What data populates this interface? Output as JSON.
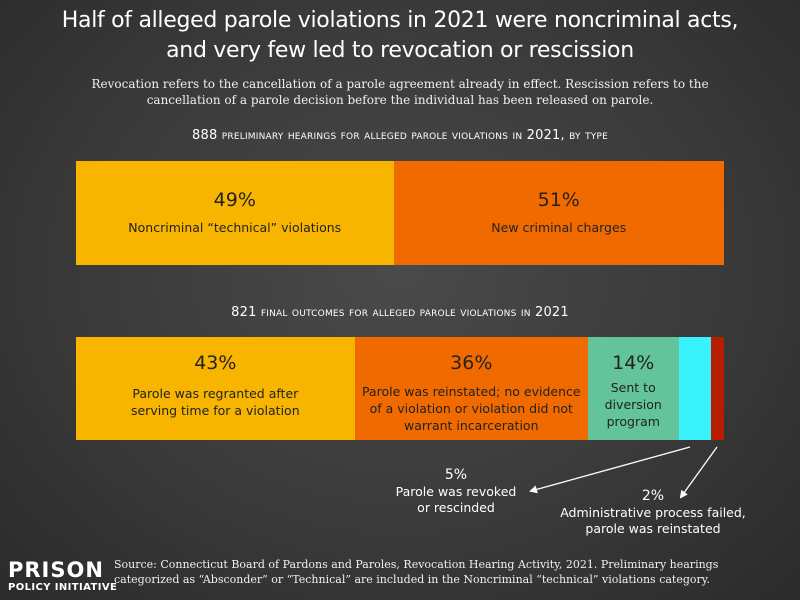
{
  "header": {
    "title_line1": "Half of alleged parole violations in 2021 were noncriminal acts,",
    "title_line2": "and very few led to revocation or rescission",
    "subtitle_line1": "Revocation refers to the cancellation of a parole agreement already in effect. Rescission refers to the",
    "subtitle_line2": "cancellation of a parole decision before the individual has been released on parole."
  },
  "chart_data": [
    {
      "type": "bar",
      "title": "888 preliminary hearings for alleged parole violations in 2021, by type",
      "categories": [
        "Noncriminal “technical” violations",
        "New criminal charges"
      ],
      "values": [
        49,
        51
      ],
      "pct_labels": [
        "49%",
        "51%"
      ],
      "colors": [
        "#f7b500",
        "#f06a00"
      ]
    },
    {
      "type": "bar",
      "title": "821 final outcomes for alleged parole violations in 2021",
      "categories": [
        "Parole was regranted after serving time for a violation",
        "Parole was reinstated; no evidence of  a violation or violation did not warrant incarceration",
        "Sent to diversion program",
        "Parole was revoked or rescinded",
        "Administrative process failed, parole was reinstated"
      ],
      "values": [
        43,
        36,
        14,
        5,
        2
      ],
      "pct_labels": [
        "43%",
        "36%",
        "14%",
        "5%",
        "2%"
      ],
      "colors": [
        "#f7b500",
        "#f06a00",
        "#63c39a",
        "#3af2fb",
        "#b81d00"
      ]
    }
  ],
  "labels": {
    "bar1_seg1": "Noncriminal “technical” violations",
    "bar1_seg2": "New criminal charges",
    "bar2_seg1_l1": "Parole was regranted after",
    "bar2_seg1_l2": "serving time for a violation",
    "bar2_seg2_l1": "Parole was reinstated; no evidence",
    "bar2_seg2_l2": "of  a violation or violation did not",
    "bar2_seg2_l3": "warrant incarceration",
    "bar2_seg3_l1": "Sent to",
    "bar2_seg3_l2": "diversion",
    "bar2_seg3_l3": "program",
    "callout_revoked_l1": "Parole was revoked",
    "callout_revoked_l2": "or rescinded",
    "callout_admin_l1": "Administrative process failed,",
    "callout_admin_l2": "parole was reinstated"
  },
  "footer": {
    "logo_line1": "PRISON",
    "logo_line2": "POLICY INITIATIVE",
    "source_line1": "Source: Connecticut Board of Pardons and Paroles, Revocation Hearing Activity, 2021. Preliminary hearings",
    "source_line2": "categorized as “Absconder” or “Technical” are included in the Noncriminal “technical” violations category."
  }
}
